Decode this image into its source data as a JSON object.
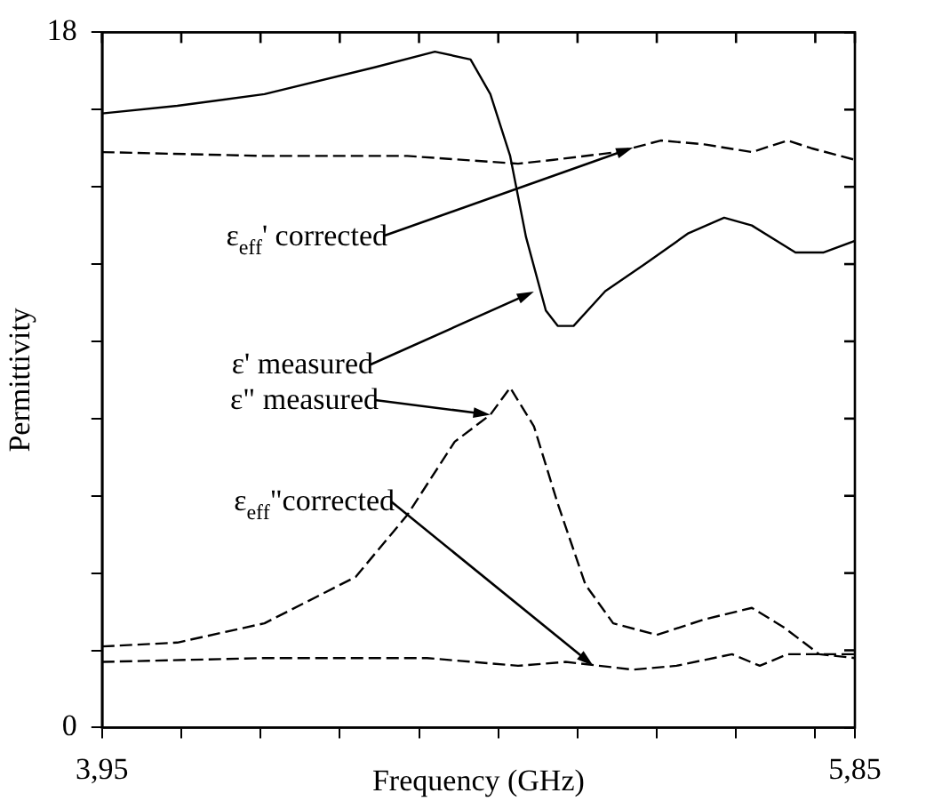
{
  "chart_data": {
    "type": "line",
    "xlabel": "Frequency (GHz)",
    "ylabel": "Permittivity",
    "xlim": [
      3.95,
      5.85
    ],
    "xticks": [
      {
        "value": 3.95,
        "label": "3,95"
      },
      {
        "value": 4.15,
        "label": null
      },
      {
        "value": 4.35,
        "label": null
      },
      {
        "value": 4.55,
        "label": null
      },
      {
        "value": 4.75,
        "label": null
      },
      {
        "value": 4.95,
        "label": null
      },
      {
        "value": 5.15,
        "label": null
      },
      {
        "value": 5.35,
        "label": null
      },
      {
        "value": 5.55,
        "label": null
      },
      {
        "value": 5.75,
        "label": null
      },
      {
        "value": 5.85,
        "label": "5,85"
      }
    ],
    "ylim": [
      0,
      18
    ],
    "yticks": [
      0,
      {
        "value": 2,
        "label": null
      },
      {
        "value": 4,
        "label": null
      },
      {
        "value": 6,
        "label": null
      },
      {
        "value": 8,
        "label": null
      },
      {
        "value": 10,
        "label": null
      },
      {
        "value": 12,
        "label": null
      },
      {
        "value": 14,
        "label": null
      },
      {
        "value": 16,
        "label": null
      },
      18
    ],
    "grid": false,
    "legend": false,
    "marker": "none",
    "series": [
      {
        "color": "#000000",
        "line_style": "solid",
        "x": [
          3.95,
          4.14,
          4.36,
          4.64,
          4.79,
          4.88,
          4.93,
          4.98,
          5.02,
          5.07,
          5.1,
          5.14,
          5.22,
          5.32,
          5.43,
          5.52,
          5.59,
          5.7,
          5.77,
          5.85
        ],
        "values": [
          15.9,
          16.1,
          16.4,
          17.1,
          17.5,
          17.3,
          16.4,
          14.8,
          12.7,
          10.8,
          10.4,
          10.4,
          11.3,
          12.0,
          12.8,
          13.2,
          13.0,
          12.3,
          12.3,
          12.6
        ]
      },
      {
        "color": "#000000",
        "line_style": "dashed",
        "x": [
          3.95,
          4.36,
          4.72,
          5.0,
          5.09,
          5.25,
          5.36,
          5.47,
          5.59,
          5.68,
          5.74,
          5.85
        ],
        "values": [
          14.9,
          14.8,
          14.8,
          14.6,
          14.7,
          14.9,
          15.2,
          15.1,
          14.9,
          15.2,
          15.0,
          14.7
        ]
      },
      {
        "color": "#000000",
        "line_style": "dashed",
        "x": [
          3.95,
          4.14,
          4.36,
          4.59,
          4.72,
          4.84,
          4.93,
          4.98,
          5.04,
          5.1,
          5.17,
          5.24,
          5.35,
          5.47,
          5.59,
          5.67,
          5.76,
          5.85
        ],
        "values": [
          2.1,
          2.2,
          2.7,
          3.9,
          5.5,
          7.4,
          8.1,
          8.8,
          7.8,
          5.8,
          3.7,
          2.7,
          2.4,
          2.8,
          3.1,
          2.6,
          1.9,
          1.8
        ]
      },
      {
        "color": "#000000",
        "line_style": "dashed",
        "x": [
          3.95,
          4.36,
          4.77,
          5.0,
          5.12,
          5.29,
          5.4,
          5.54,
          5.61,
          5.68,
          5.85
        ],
        "values": [
          1.7,
          1.8,
          1.8,
          1.6,
          1.7,
          1.5,
          1.6,
          1.9,
          1.6,
          1.9,
          1.9
        ]
      }
    ],
    "annotations": [
      {
        "text": "ε$_{eff}$' corrected",
        "x": 5.29,
        "y": 15.0
      },
      {
        "text": "ε' measured",
        "x": 5.04,
        "y": 11.3
      },
      {
        "text": "ε\" measured",
        "x": 4.93,
        "y": 8.1
      },
      {
        "text": "ε$_{eff}$\"corrected",
        "x": 5.19,
        "y": 1.6
      }
    ]
  }
}
